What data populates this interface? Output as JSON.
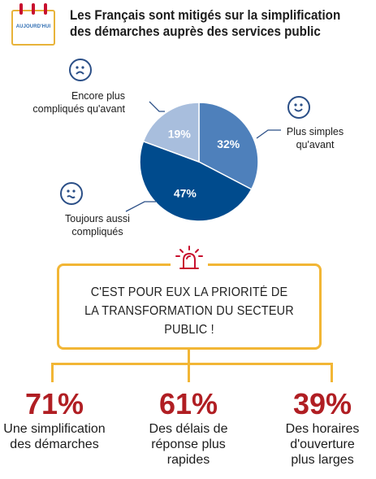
{
  "header": {
    "logo_text": "AUJOURD'HUI",
    "title_line1": "Les Français sont mitigés sur la simplification",
    "title_line2": "des démarches auprès des services public"
  },
  "chart_data": {
    "type": "pie",
    "slices": [
      {
        "label_line1": "Plus simples",
        "label_line2": "qu'avant",
        "value": 32,
        "display": "32%",
        "color": "#4e80bb",
        "icon": "smiling-face-icon"
      },
      {
        "label_line1": "Toujours aussi",
        "label_line2": "compliqués",
        "value": 47,
        "display": "47%",
        "color": "#004b8d",
        "icon": "worried-face-icon"
      },
      {
        "label_line1": "Encore plus",
        "label_line2": "compliqués qu'avant",
        "value": 19,
        "display": "19%",
        "color": "#a8bedd",
        "icon": "sad-face-icon"
      }
    ]
  },
  "callout": {
    "line1": "C'EST POUR EUX LA PRIORITÉ DE",
    "line2": "LA TRANSFORMATION DU SECTEUR PUBLIC !",
    "icon": "alarm-light-icon"
  },
  "priorities": [
    {
      "pct": "71%",
      "line1": "Une simplification",
      "line2": "des démarches",
      "line3": ""
    },
    {
      "pct": "61%",
      "line1": "Des délais de",
      "line2": "réponse plus",
      "line3": "rapides"
    },
    {
      "pct": "39%",
      "line1": "Des horaires",
      "line2": "d'ouverture",
      "line3": "plus larges"
    }
  ],
  "colors": {
    "accent": "#f2b635",
    "stat_red": "#b01e23",
    "face_blue": "#2b4f87",
    "leader": "#2b4f87"
  }
}
